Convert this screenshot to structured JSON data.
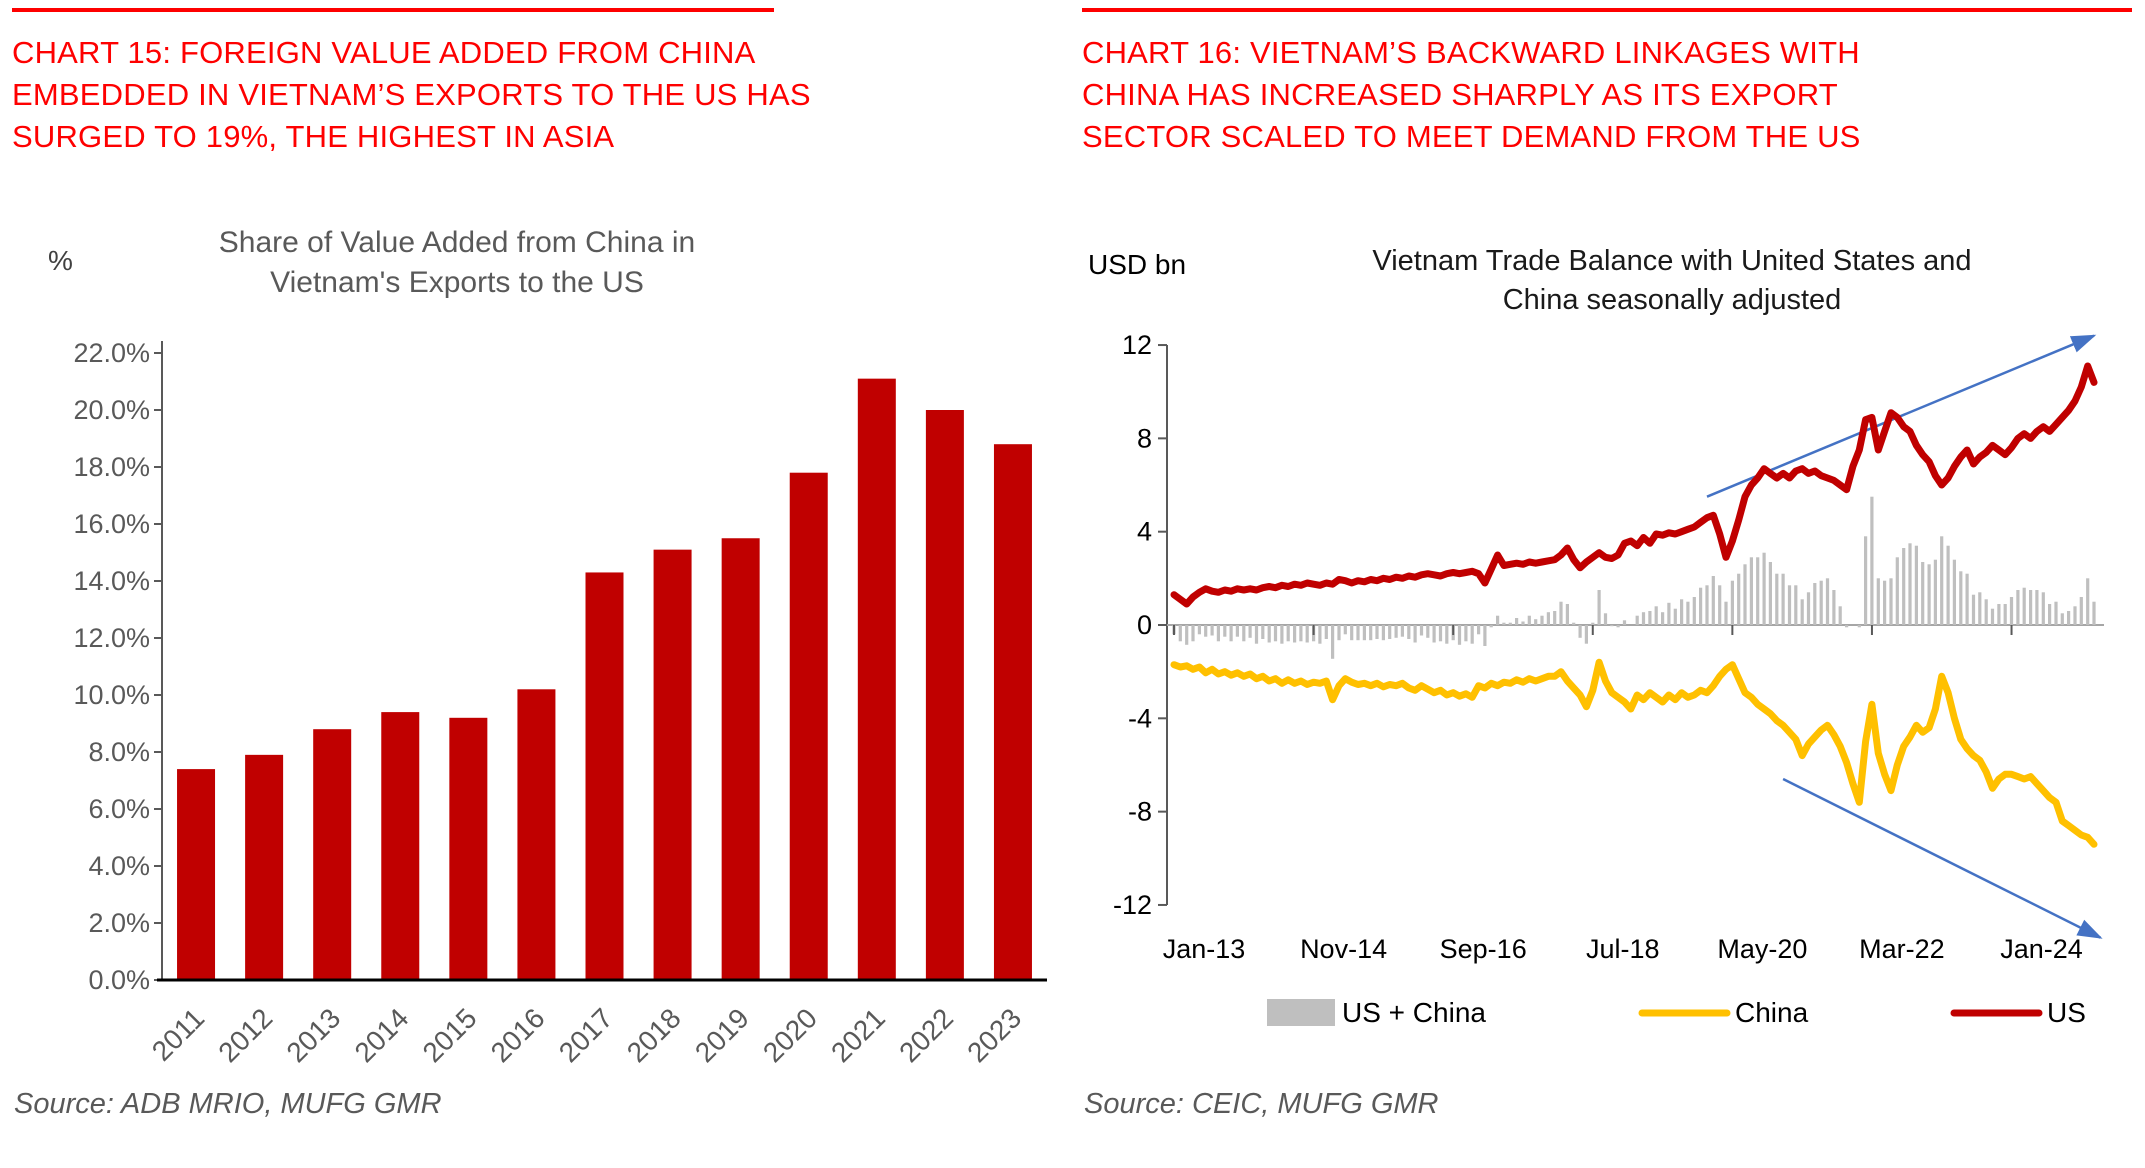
{
  "panels": {
    "left": {
      "headline_lines": [
        "CHART 15: FOREIGN VALUE ADDED FROM CHINA",
        "EMBEDDED IN VIETNAM’S EXPORTS TO THE US HAS",
        "SURGED TO 19%, THE HIGHEST IN ASIA"
      ],
      "source": "Source: ADB MRIO, MUFG GMR"
    },
    "right": {
      "headline_lines": [
        "CHART 16: VIETNAM’S BACKWARD LINKAGES WITH",
        "CHINA HAS INCREASED SHARPLY AS ITS EXPORT",
        "SECTOR SCALED TO MEET DEMAND FROM THE US"
      ],
      "source": "Source: CEIC, MUFG GMR"
    }
  },
  "colors": {
    "headline_red": "#fe0000",
    "dark_red": "#C00000",
    "china_yellow": "#FFC000",
    "combined_gray": "#BFBFBF",
    "arrow_blue": "#4472C4",
    "muted_gray_text": "#595959"
  },
  "chart_data": [
    {
      "type": "bar",
      "title": "Share of Value Added from China in Vietnam's Exports to the US",
      "title_lines": [
        "Share of Value Added from China in",
        "Vietnam's Exports to the US"
      ],
      "unit_label": "%",
      "xlabel": "",
      "ylabel": "%",
      "categories": [
        "2011",
        "2012",
        "2013",
        "2014",
        "2015",
        "2016",
        "2017",
        "2018",
        "2019",
        "2020",
        "2021",
        "2022",
        "2023"
      ],
      "values": [
        7.4,
        7.9,
        8.8,
        9.4,
        9.2,
        10.2,
        14.3,
        15.1,
        15.5,
        17.8,
        21.1,
        20.0,
        18.8
      ],
      "ylim": [
        0,
        22
      ],
      "ytick_step": 2,
      "ytick_format": "0.0%",
      "bar_color": "#C00000",
      "grid": false,
      "legend": false
    },
    {
      "type": "line+bar",
      "title": "Vietnam Trade Balance with United States and China seasonally adjusted",
      "title_lines": [
        "Vietnam Trade Balance with United States and",
        "China seasonally adjusted"
      ],
      "unit_label": "USD bn",
      "frequency": "monthly",
      "x_start": "Jan-13",
      "x_end": "Feb-25",
      "x_tick_labels": [
        "Jan-13",
        "Nov-14",
        "Sep-16",
        "Jul-18",
        "May-20",
        "Mar-22",
        "Jan-24"
      ],
      "x_tick_months": [
        0,
        22,
        44,
        66,
        88,
        110,
        132
      ],
      "ylim": [
        -12,
        12
      ],
      "ytick_step": 4,
      "grid": false,
      "legend_position": "bottom",
      "series": [
        {
          "name": "US + China",
          "type": "bar",
          "color": "#BFBFBF",
          "derived": "sum of China and US series values"
        },
        {
          "name": "China",
          "type": "line",
          "color": "#FFC000",
          "values": [
            -1.7,
            -1.8,
            -1.75,
            -1.9,
            -1.8,
            -2.05,
            -1.9,
            -2.1,
            -2.0,
            -2.15,
            -2.05,
            -2.2,
            -2.1,
            -2.3,
            -2.2,
            -2.4,
            -2.3,
            -2.5,
            -2.35,
            -2.5,
            -2.4,
            -2.55,
            -2.45,
            -2.5,
            -2.4,
            -3.2,
            -2.6,
            -2.3,
            -2.45,
            -2.55,
            -2.5,
            -2.6,
            -2.5,
            -2.65,
            -2.55,
            -2.6,
            -2.5,
            -2.7,
            -2.8,
            -2.6,
            -2.75,
            -2.9,
            -2.8,
            -3.0,
            -2.9,
            -3.05,
            -2.95,
            -3.1,
            -2.6,
            -2.7,
            -2.5,
            -2.6,
            -2.45,
            -2.5,
            -2.35,
            -2.45,
            -2.3,
            -2.4,
            -2.3,
            -2.2,
            -2.2,
            -2.0,
            -2.4,
            -2.7,
            -3.0,
            -3.5,
            -2.8,
            -1.6,
            -2.4,
            -2.9,
            -3.1,
            -3.3,
            -3.6,
            -3.0,
            -3.2,
            -2.9,
            -3.1,
            -3.3,
            -3.0,
            -3.2,
            -2.9,
            -3.1,
            -3.0,
            -2.8,
            -2.9,
            -2.6,
            -2.2,
            -1.9,
            -1.7,
            -2.3,
            -2.9,
            -3.1,
            -3.4,
            -3.6,
            -3.8,
            -4.1,
            -4.3,
            -4.6,
            -4.9,
            -5.6,
            -5.1,
            -4.8,
            -4.5,
            -4.3,
            -4.7,
            -5.2,
            -5.9,
            -6.8,
            -7.6,
            -5.0,
            -3.4,
            -5.5,
            -6.4,
            -7.1,
            -6.0,
            -5.2,
            -4.8,
            -4.3,
            -4.6,
            -4.4,
            -3.6,
            -2.2,
            -2.9,
            -4.0,
            -4.9,
            -5.3,
            -5.6,
            -5.8,
            -6.3,
            -7.0,
            -6.6,
            -6.4,
            -6.4,
            -6.5,
            -6.6,
            -6.5,
            -6.8,
            -7.1,
            -7.4,
            -7.6,
            -8.4,
            -8.6,
            -8.8,
            -9.0,
            -9.1,
            -9.4
          ]
        },
        {
          "name": "US",
          "type": "line",
          "color": "#C00000",
          "values": [
            1.3,
            1.1,
            0.9,
            1.2,
            1.4,
            1.55,
            1.45,
            1.4,
            1.5,
            1.45,
            1.55,
            1.5,
            1.55,
            1.5,
            1.6,
            1.65,
            1.6,
            1.7,
            1.65,
            1.75,
            1.7,
            1.8,
            1.75,
            1.7,
            1.8,
            1.75,
            1.95,
            1.9,
            1.8,
            1.9,
            1.85,
            1.95,
            1.9,
            2.0,
            1.95,
            2.05,
            2.0,
            2.1,
            2.05,
            2.15,
            2.2,
            2.15,
            2.1,
            2.2,
            2.25,
            2.2,
            2.25,
            2.3,
            2.2,
            1.8,
            2.4,
            3.0,
            2.55,
            2.6,
            2.65,
            2.6,
            2.7,
            2.65,
            2.7,
            2.75,
            2.8,
            3.0,
            3.3,
            2.8,
            2.45,
            2.7,
            2.9,
            3.1,
            2.9,
            2.85,
            3.0,
            3.5,
            3.6,
            3.4,
            3.75,
            3.5,
            3.9,
            3.85,
            3.95,
            3.9,
            4.0,
            4.1,
            4.2,
            4.4,
            4.6,
            4.7,
            3.9,
            2.9,
            3.6,
            4.5,
            5.5,
            6.0,
            6.3,
            6.7,
            6.5,
            6.3,
            6.5,
            6.3,
            6.6,
            6.7,
            6.5,
            6.6,
            6.4,
            6.3,
            6.2,
            6.0,
            5.8,
            6.8,
            7.5,
            8.8,
            8.9,
            7.5,
            8.3,
            9.1,
            8.9,
            8.5,
            8.3,
            7.7,
            7.3,
            7.0,
            6.4,
            6.0,
            6.3,
            6.8,
            7.2,
            7.5,
            6.9,
            7.2,
            7.4,
            7.7,
            7.5,
            7.3,
            7.6,
            8.0,
            8.2,
            8.0,
            8.3,
            8.5,
            8.3,
            8.6,
            8.9,
            9.2,
            9.6,
            10.2,
            11.1,
            10.4
          ]
        }
      ],
      "annotations": [
        {
          "name": "us-uptrend-arrow",
          "color": "#4472C4",
          "from": {
            "month": 84,
            "value": 5.5
          },
          "to": {
            "month": 145,
            "value": 12.4
          }
        },
        {
          "name": "china-downtrend-arrow",
          "color": "#4472C4",
          "from": {
            "month": 96,
            "value": -6.6
          },
          "to": {
            "month": 146,
            "value": -13.4
          }
        }
      ]
    }
  ]
}
